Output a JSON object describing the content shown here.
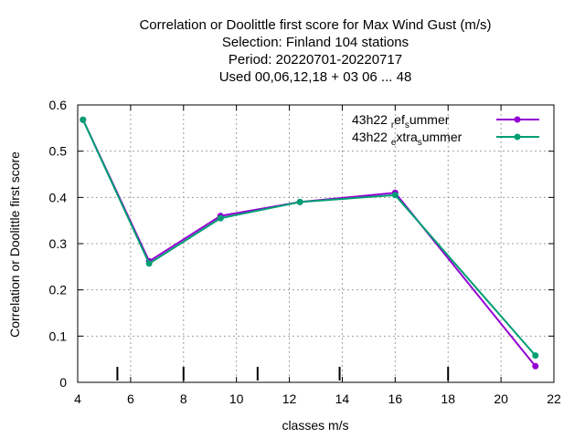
{
  "chart_data": {
    "type": "line",
    "title_lines": [
      "Correlation or Doolittle first score  for Max Wind Gust (m/s)",
      "Selection: Finland    104 stations",
      "Period: 20220701-20220717",
      "Used  00,06,12,18  + 03 06 ... 48"
    ],
    "xlabel": "classes m/s",
    "ylabel": "Correlation or Doolittle first score",
    "xlim": [
      4,
      22
    ],
    "ylim": [
      0,
      0.6
    ],
    "xticks": [
      4,
      6,
      8,
      10,
      12,
      14,
      16,
      18,
      20,
      22
    ],
    "yticks": [
      0,
      0.1,
      0.2,
      0.3,
      0.4,
      0.5,
      0.6
    ],
    "xtick_labels": [
      "4",
      "6",
      "8",
      "10",
      "12",
      "14",
      "16",
      "18",
      "20",
      "22"
    ],
    "ytick_labels": [
      "0",
      "0.1",
      "0.2",
      "0.3",
      "0.4",
      "0.5",
      "0.6"
    ],
    "grid": true,
    "legend_position": "top-right",
    "class_boundaries": [
      5.5,
      8,
      10.8,
      13.9,
      18
    ],
    "series": [
      {
        "legend_parts": [
          {
            "text": "43h22 ",
            "sub": false
          },
          {
            "text": "r",
            "sub": true
          },
          {
            "text": "ef",
            "sub": false
          },
          {
            "text": "s",
            "sub": true
          },
          {
            "text": "ummer",
            "sub": false
          }
        ],
        "color": "#9400d3",
        "x": [
          4.2,
          6.7,
          9.4,
          12.4,
          16.0,
          21.3
        ],
        "y": [
          0.568,
          0.262,
          0.36,
          0.39,
          0.41,
          0.035
        ]
      },
      {
        "legend_parts": [
          {
            "text": "43h22 ",
            "sub": false
          },
          {
            "text": "e",
            "sub": true
          },
          {
            "text": "xtra",
            "sub": false
          },
          {
            "text": "s",
            "sub": true
          },
          {
            "text": "ummer",
            "sub": false
          }
        ],
        "color": "#009e73",
        "x": [
          4.2,
          6.7,
          9.4,
          12.4,
          16.0,
          21.3
        ],
        "y": [
          0.568,
          0.257,
          0.355,
          0.39,
          0.405,
          0.058
        ]
      }
    ]
  }
}
